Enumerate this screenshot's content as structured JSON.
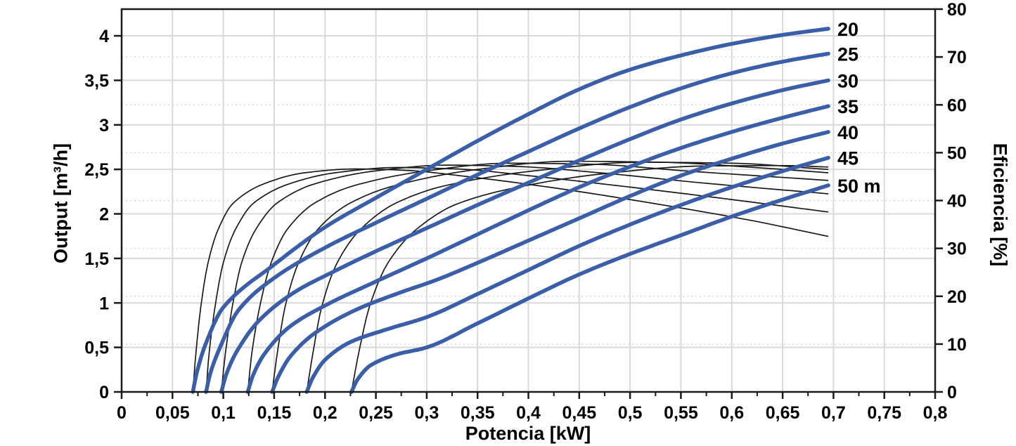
{
  "page": {
    "background": "#ffffff"
  },
  "chart_data": {
    "type": "line",
    "title": "",
    "xlabel": "Potencia [kW]",
    "ylabel_left": "Output [m³/h]",
    "ylabel_right": "Eficiencia [%]",
    "xlim": [
      0,
      0.8
    ],
    "ylim_left": [
      0,
      4.3
    ],
    "ylim_right": [
      0,
      80
    ],
    "grid": {
      "vertical_major": true,
      "horizontal_major_left_axis": true,
      "horizontal_dotted_right_axis": true
    },
    "legend_position": "curve-end-labels",
    "x_ticks": {
      "values": [
        0,
        0.05,
        0.1,
        0.15,
        0.2,
        0.25,
        0.3,
        0.35,
        0.4,
        0.45,
        0.5,
        0.55,
        0.6,
        0.65,
        0.7,
        0.75,
        0.8
      ],
      "labels": [
        "0",
        "0,05",
        "0,1",
        "0,15",
        "0,2",
        "0,25",
        "0,3",
        "0,35",
        "0,4",
        "0,45",
        "0,5",
        "0,55",
        "0,6",
        "0,65",
        "0,7",
        "0,75",
        "0,8"
      ],
      "minor_step": 0.025
    },
    "y_ticks_left": {
      "values": [
        0,
        0.5,
        1,
        1.5,
        2,
        2.5,
        3,
        3.5,
        4
      ],
      "labels": [
        "0",
        "0,5",
        "1",
        "1,5",
        "2",
        "2,5",
        "3",
        "3,5",
        "4"
      ]
    },
    "y_ticks_right": {
      "values": [
        0,
        10,
        20,
        30,
        40,
        50,
        60,
        70,
        80
      ],
      "labels": [
        "0",
        "10",
        "20",
        "30",
        "40",
        "50",
        "60",
        "70",
        "80"
      ]
    },
    "colors": {
      "output_curve": "#3a5fa8",
      "efficiency_curve": "#1a1a1a",
      "grid_major": "#d9d9d9",
      "grid_dotted": "#d4d4d4",
      "axis": "#1a1a1a"
    },
    "curve_labels": [
      "20",
      "25",
      "30",
      "35",
      "40",
      "45",
      "50 m"
    ],
    "series_output": [
      {
        "name": "head-20m",
        "label": "20",
        "head_m": 20,
        "unit_x": "kW",
        "unit_y": "m3/h",
        "points": [
          [
            0.07,
            0
          ],
          [
            0.074,
            0.22
          ],
          [
            0.082,
            0.52
          ],
          [
            0.1,
            0.95
          ],
          [
            0.15,
            1.43
          ],
          [
            0.2,
            1.85
          ],
          [
            0.25,
            2.18
          ],
          [
            0.3,
            2.5
          ],
          [
            0.35,
            2.82
          ],
          [
            0.4,
            3.12
          ],
          [
            0.45,
            3.4
          ],
          [
            0.5,
            3.62
          ],
          [
            0.55,
            3.78
          ],
          [
            0.6,
            3.91
          ],
          [
            0.65,
            4.01
          ],
          [
            0.695,
            4.08
          ]
        ]
      },
      {
        "name": "head-25m",
        "label": "25",
        "head_m": 25,
        "unit_x": "kW",
        "unit_y": "m3/h",
        "points": [
          [
            0.083,
            0
          ],
          [
            0.087,
            0.2
          ],
          [
            0.096,
            0.48
          ],
          [
            0.115,
            0.92
          ],
          [
            0.15,
            1.28
          ],
          [
            0.2,
            1.62
          ],
          [
            0.25,
            1.9
          ],
          [
            0.3,
            2.17
          ],
          [
            0.35,
            2.44
          ],
          [
            0.4,
            2.7
          ],
          [
            0.45,
            2.96
          ],
          [
            0.5,
            3.2
          ],
          [
            0.55,
            3.41
          ],
          [
            0.6,
            3.58
          ],
          [
            0.65,
            3.71
          ],
          [
            0.695,
            3.8
          ]
        ]
      },
      {
        "name": "head-30m",
        "label": "30",
        "head_m": 30,
        "unit_x": "kW",
        "unit_y": "m3/h",
        "points": [
          [
            0.098,
            0
          ],
          [
            0.103,
            0.2
          ],
          [
            0.113,
            0.45
          ],
          [
            0.135,
            0.8
          ],
          [
            0.17,
            1.12
          ],
          [
            0.21,
            1.36
          ],
          [
            0.25,
            1.58
          ],
          [
            0.3,
            1.84
          ],
          [
            0.35,
            2.1
          ],
          [
            0.4,
            2.35
          ],
          [
            0.45,
            2.6
          ],
          [
            0.5,
            2.84
          ],
          [
            0.55,
            3.06
          ],
          [
            0.6,
            3.24
          ],
          [
            0.65,
            3.39
          ],
          [
            0.695,
            3.5
          ]
        ]
      },
      {
        "name": "head-35m",
        "label": "35",
        "head_m": 35,
        "unit_x": "kW",
        "unit_y": "m3/h",
        "points": [
          [
            0.124,
            0
          ],
          [
            0.129,
            0.18
          ],
          [
            0.14,
            0.42
          ],
          [
            0.165,
            0.73
          ],
          [
            0.2,
            0.97
          ],
          [
            0.25,
            1.24
          ],
          [
            0.3,
            1.5
          ],
          [
            0.35,
            1.77
          ],
          [
            0.4,
            2.04
          ],
          [
            0.45,
            2.3
          ],
          [
            0.5,
            2.53
          ],
          [
            0.55,
            2.74
          ],
          [
            0.6,
            2.92
          ],
          [
            0.65,
            3.08
          ],
          [
            0.695,
            3.21
          ]
        ]
      },
      {
        "name": "head-40m",
        "label": "40",
        "head_m": 40,
        "unit_x": "kW",
        "unit_y": "m3/h",
        "points": [
          [
            0.148,
            0
          ],
          [
            0.154,
            0.17
          ],
          [
            0.166,
            0.4
          ],
          [
            0.19,
            0.66
          ],
          [
            0.23,
            0.92
          ],
          [
            0.27,
            1.1
          ],
          [
            0.31,
            1.26
          ],
          [
            0.35,
            1.45
          ],
          [
            0.4,
            1.7
          ],
          [
            0.45,
            1.95
          ],
          [
            0.5,
            2.2
          ],
          [
            0.55,
            2.43
          ],
          [
            0.6,
            2.62
          ],
          [
            0.65,
            2.79
          ],
          [
            0.695,
            2.92
          ]
        ]
      },
      {
        "name": "head-45m",
        "label": "45",
        "head_m": 45,
        "unit_x": "kW",
        "unit_y": "m3/h",
        "points": [
          [
            0.182,
            0
          ],
          [
            0.188,
            0.16
          ],
          [
            0.2,
            0.36
          ],
          [
            0.225,
            0.56
          ],
          [
            0.26,
            0.7
          ],
          [
            0.3,
            0.84
          ],
          [
            0.35,
            1.1
          ],
          [
            0.4,
            1.37
          ],
          [
            0.45,
            1.64
          ],
          [
            0.5,
            1.88
          ],
          [
            0.55,
            2.1
          ],
          [
            0.6,
            2.3
          ],
          [
            0.65,
            2.48
          ],
          [
            0.695,
            2.63
          ]
        ]
      },
      {
        "name": "head-50m",
        "label": "50 m",
        "head_m": 50,
        "unit_x": "kW",
        "unit_y": "m3/h",
        "points": [
          [
            0.226,
            0
          ],
          [
            0.232,
            0.14
          ],
          [
            0.245,
            0.3
          ],
          [
            0.27,
            0.42
          ],
          [
            0.3,
            0.5
          ],
          [
            0.35,
            0.77
          ],
          [
            0.4,
            1.05
          ],
          [
            0.45,
            1.32
          ],
          [
            0.5,
            1.55
          ],
          [
            0.55,
            1.76
          ],
          [
            0.6,
            1.97
          ],
          [
            0.65,
            2.16
          ],
          [
            0.695,
            2.32
          ]
        ]
      }
    ],
    "series_efficiency": [
      {
        "name": "eff-20m",
        "head_m": 20,
        "unit_x": "kW",
        "unit_y": "%",
        "points": [
          [
            0.07,
            0
          ],
          [
            0.073,
            8
          ],
          [
            0.078,
            18
          ],
          [
            0.085,
            27
          ],
          [
            0.095,
            34
          ],
          [
            0.11,
            39.5
          ],
          [
            0.14,
            43.5
          ],
          [
            0.18,
            45.8
          ],
          [
            0.23,
            46.6
          ],
          [
            0.28,
            46.3
          ],
          [
            0.34,
            45.0
          ],
          [
            0.42,
            42.8
          ],
          [
            0.52,
            39.5
          ],
          [
            0.62,
            35.8
          ],
          [
            0.695,
            32.5
          ]
        ]
      },
      {
        "name": "eff-25m",
        "head_m": 25,
        "unit_x": "kW",
        "unit_y": "%",
        "points": [
          [
            0.083,
            0
          ],
          [
            0.086,
            8
          ],
          [
            0.092,
            18
          ],
          [
            0.1,
            27
          ],
          [
            0.112,
            34
          ],
          [
            0.13,
            39.5
          ],
          [
            0.165,
            43.5
          ],
          [
            0.21,
            45.8
          ],
          [
            0.27,
            46.9
          ],
          [
            0.33,
            46.6
          ],
          [
            0.4,
            45.2
          ],
          [
            0.5,
            42.8
          ],
          [
            0.6,
            40.2
          ],
          [
            0.695,
            37.6
          ]
        ]
      },
      {
        "name": "eff-30m",
        "head_m": 30,
        "unit_x": "kW",
        "unit_y": "%",
        "points": [
          [
            0.098,
            0
          ],
          [
            0.102,
            8
          ],
          [
            0.109,
            18
          ],
          [
            0.118,
            27
          ],
          [
            0.132,
            34
          ],
          [
            0.153,
            39.5
          ],
          [
            0.19,
            43.5
          ],
          [
            0.25,
            46.2
          ],
          [
            0.32,
            47.4
          ],
          [
            0.39,
            47.1
          ],
          [
            0.47,
            45.8
          ],
          [
            0.57,
            43.7
          ],
          [
            0.695,
            41.4
          ]
        ]
      },
      {
        "name": "eff-35m",
        "head_m": 35,
        "unit_x": "kW",
        "unit_y": "%",
        "points": [
          [
            0.124,
            0
          ],
          [
            0.128,
            8
          ],
          [
            0.136,
            18
          ],
          [
            0.147,
            27
          ],
          [
            0.163,
            34
          ],
          [
            0.19,
            39.5
          ],
          [
            0.23,
            43.2
          ],
          [
            0.3,
            46.2
          ],
          [
            0.38,
            47.8
          ],
          [
            0.46,
            47.6
          ],
          [
            0.56,
            46.1
          ],
          [
            0.695,
            44.2
          ]
        ]
      },
      {
        "name": "eff-40m",
        "head_m": 40,
        "unit_x": "kW",
        "unit_y": "%",
        "points": [
          [
            0.148,
            0
          ],
          [
            0.153,
            8
          ],
          [
            0.161,
            18
          ],
          [
            0.174,
            27
          ],
          [
            0.193,
            34
          ],
          [
            0.225,
            39.5
          ],
          [
            0.27,
            43.2
          ],
          [
            0.35,
            46.5
          ],
          [
            0.44,
            48.2
          ],
          [
            0.53,
            48.0
          ],
          [
            0.63,
            46.8
          ],
          [
            0.695,
            45.8
          ]
        ]
      },
      {
        "name": "eff-45m",
        "head_m": 45,
        "unit_x": "kW",
        "unit_y": "%",
        "points": [
          [
            0.182,
            0
          ],
          [
            0.188,
            8
          ],
          [
            0.197,
            18
          ],
          [
            0.212,
            27
          ],
          [
            0.235,
            34
          ],
          [
            0.27,
            39.5
          ],
          [
            0.32,
            43.2
          ],
          [
            0.41,
            46.3
          ],
          [
            0.51,
            48.0
          ],
          [
            0.6,
            47.8
          ],
          [
            0.695,
            46.5
          ]
        ]
      },
      {
        "name": "eff-50m",
        "head_m": 50,
        "unit_x": "kW",
        "unit_y": "%",
        "points": [
          [
            0.226,
            0
          ],
          [
            0.233,
            8
          ],
          [
            0.244,
            18
          ],
          [
            0.262,
            27
          ],
          [
            0.29,
            34
          ],
          [
            0.33,
            39.3
          ],
          [
            0.39,
            42.8
          ],
          [
            0.47,
            45.5
          ],
          [
            0.57,
            47.2
          ],
          [
            0.65,
            47.3
          ],
          [
            0.695,
            47.0
          ]
        ]
      }
    ]
  }
}
